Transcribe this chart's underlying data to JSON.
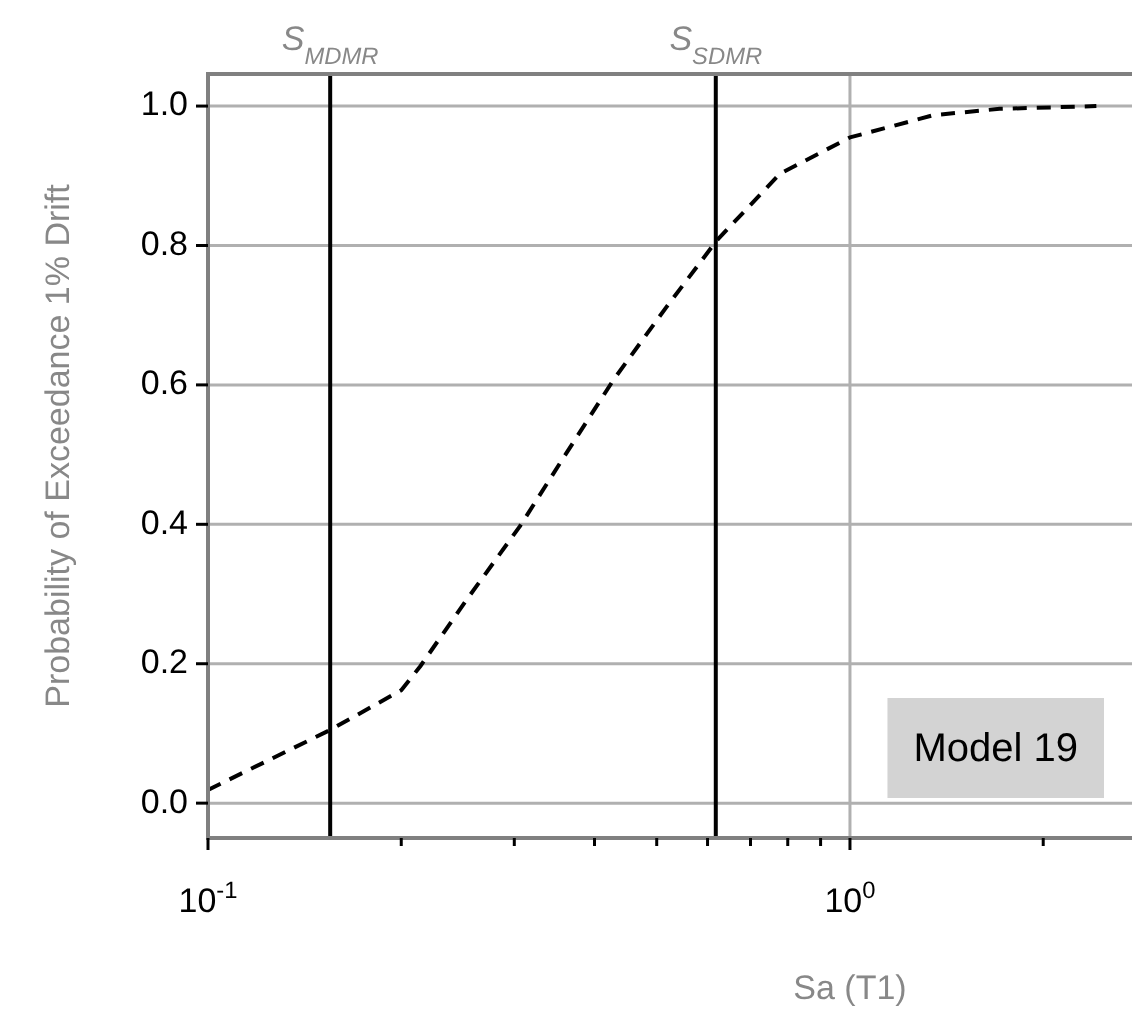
{
  "chart_data": {
    "type": "line",
    "xlabel": "Sa (T1)",
    "ylabel": "Probability of Exceedance 1% Drift",
    "log": "x",
    "x": [
      0.1,
      0.155,
      0.2,
      0.214,
      0.2525,
      0.306,
      0.361,
      0.428,
      0.518,
      0.62,
      0.778,
      1.0,
      1.35,
      1.71,
      2.42
    ],
    "series": [
      {
        "color": "#000000",
        "values": [
          0.019,
          0.105,
          0.162,
          0.196,
          0.291,
          0.397,
          0.501,
          0.607,
          0.712,
          0.807,
          0.903,
          0.955,
          0.987,
          0.996,
          1.0
        ]
      }
    ],
    "line_style": "dashed",
    "marker": "none",
    "xlim": [
      0.1,
      2.75
    ],
    "ylim": [
      -0.05,
      1.046
    ],
    "xticks": [
      {
        "value": 0.1,
        "label": "10$^{-1}$"
      },
      {
        "value": 0.2,
        "label": null
      },
      {
        "value": 0.3,
        "label": null
      },
      {
        "value": 0.4,
        "label": null
      },
      {
        "value": 0.5,
        "label": null
      },
      {
        "value": 0.6,
        "label": null
      },
      {
        "value": 0.7,
        "label": null
      },
      {
        "value": 0.8,
        "label": null
      },
      {
        "value": 0.9,
        "label": null
      },
      {
        "value": 1,
        "label": "10$^{0}$"
      },
      {
        "value": 2,
        "label": null
      }
    ],
    "yticks": [
      {
        "value": 0,
        "label": "0.0"
      },
      {
        "value": 0.2,
        "label": "0.2"
      },
      {
        "value": 0.4,
        "label": "0.4"
      },
      {
        "value": 0.6,
        "label": "0.6"
      },
      {
        "value": 0.8,
        "label": "0.8"
      },
      {
        "value": 1,
        "label": "1.0"
      }
    ],
    "grid": true,
    "legend": false,
    "ref_lines": [
      {
        "axis": "x",
        "value": 0.155,
        "label": "S$_{MDMR}$",
        "color": "#000000"
      },
      {
        "axis": "x",
        "value": 0.618,
        "label": "S$_{SDMR}$",
        "color": "#000000"
      }
    ],
    "annotations": [
      "Model 19"
    ]
  }
}
